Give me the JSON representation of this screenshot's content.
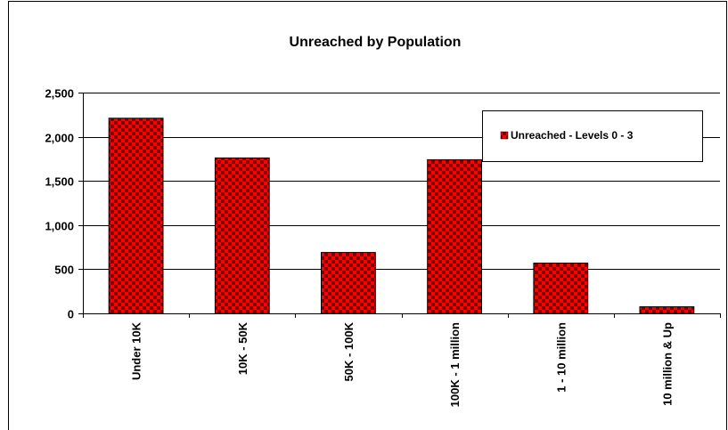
{
  "chart_data": {
    "type": "bar",
    "title": "Unreached by Population",
    "xlabel": "",
    "ylabel": "",
    "categories": [
      "Under 10K",
      "10K - 50K",
      "50K - 100K",
      "100K - 1 million",
      "1 - 10 million",
      "10 million & Up"
    ],
    "series": [
      {
        "name": "Unreached - Levels 0 - 3",
        "values": [
          2210,
          1760,
          690,
          1740,
          570,
          75
        ]
      }
    ],
    "ylim": [
      0,
      2500
    ],
    "yticks": [
      0,
      500,
      1000,
      1500,
      2000,
      2500
    ],
    "ytick_labels": [
      "0",
      "500",
      "1,000",
      "1,500",
      "2,000",
      "2,500"
    ],
    "grid": "horizontal",
    "legend_position": "top-right",
    "colors": {
      "bar_primary": "#ff0000",
      "bar_check": "#800000",
      "bar_edge": "#000000",
      "grid": "#000000",
      "background": "#ffffff"
    }
  }
}
